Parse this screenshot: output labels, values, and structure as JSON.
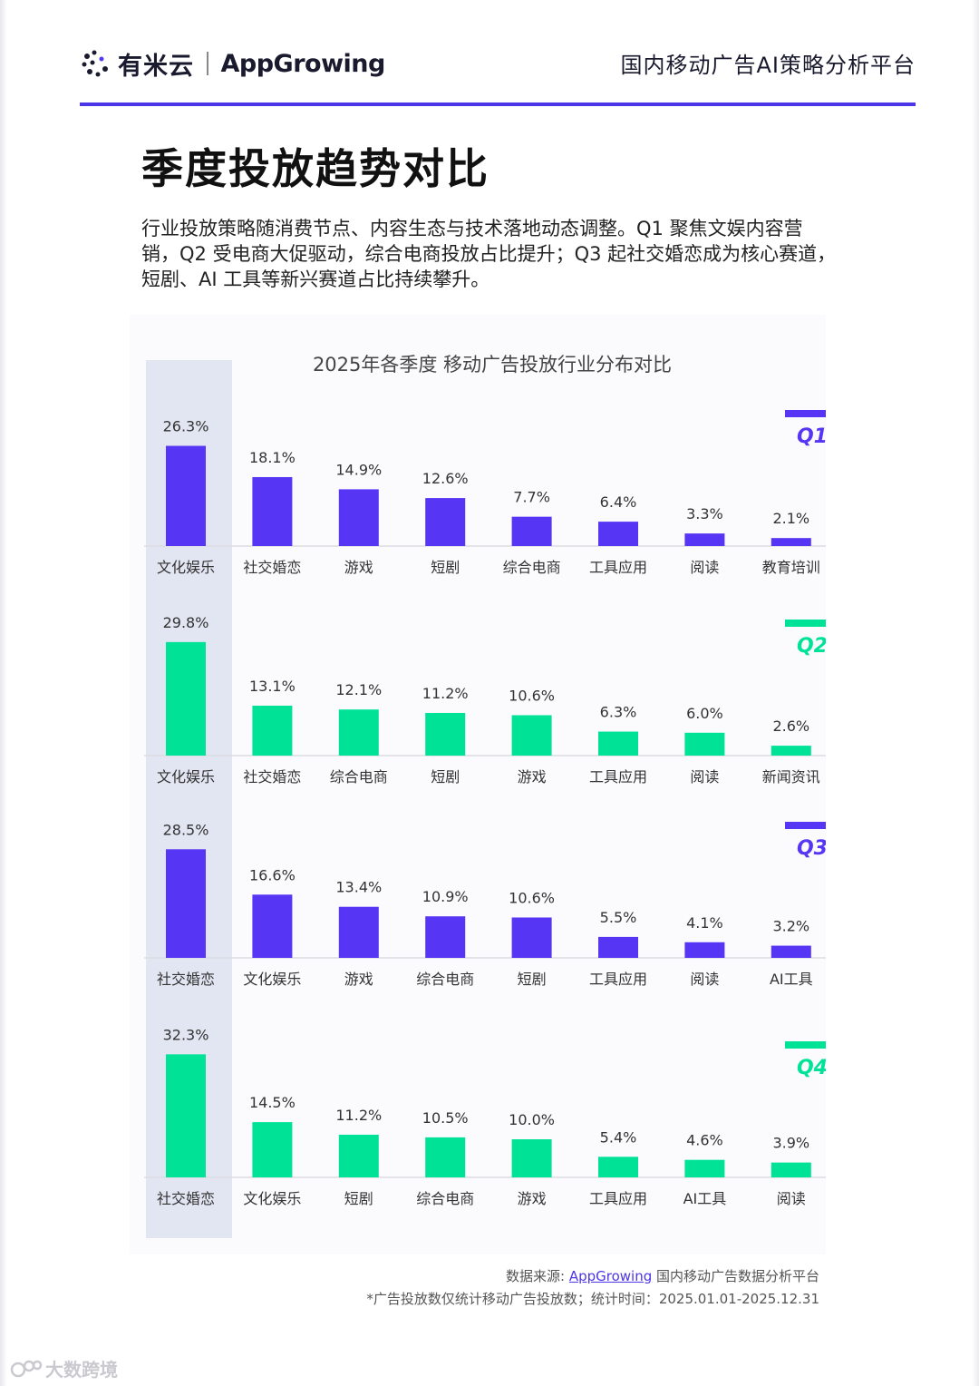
{
  "header": {
    "brand_cn": "有米云",
    "brand_en": "AppGrowing",
    "platform_title": "国内移动广告AI策略分析平台"
  },
  "page": {
    "title": "季度投放趋势对比",
    "intro": "行业投放策略随消费节点、内容生态与技术落地动态调整。Q1 聚焦文娱内容营销，Q2 受电商大促驱动，综合电商投放占比提升；Q3 起社交婚恋成为核心赛道，短剧、AI 工具等新兴赛道占比持续攀升。"
  },
  "colors": {
    "accent_purple": "#5735F5",
    "accent_green": "#00E396",
    "header_line": "#4B35E8",
    "highlight_column": "#E2E5F2"
  },
  "chart_data": {
    "type": "bar",
    "title": "2025年各季度 移动广告投放行业分布对比",
    "unit": "%",
    "panels": [
      {
        "name": "Q1",
        "color": "#5735F5",
        "categories": [
          "文化娱乐",
          "社交婚恋",
          "游戏",
          "短剧",
          "综合电商",
          "工具应用",
          "阅读",
          "教育培训"
        ],
        "values": [
          26.3,
          18.1,
          14.9,
          12.6,
          7.7,
          6.4,
          3.3,
          2.1
        ],
        "labels": [
          "26.3%",
          "18.1%",
          "14.9%",
          "12.6%",
          "7.7%",
          "6.4%",
          "3.3%",
          "2.1%"
        ]
      },
      {
        "name": "Q2",
        "color": "#00E396",
        "categories": [
          "文化娱乐",
          "社交婚恋",
          "综合电商",
          "短剧",
          "游戏",
          "工具应用",
          "阅读",
          "新闻资讯"
        ],
        "values": [
          29.8,
          13.1,
          12.1,
          11.2,
          10.6,
          6.3,
          6.0,
          2.6
        ],
        "labels": [
          "29.8%",
          "13.1%",
          "12.1%",
          "11.2%",
          "10.6%",
          "6.3%",
          "6.0%",
          "2.6%"
        ]
      },
      {
        "name": "Q3",
        "color": "#5735F5",
        "categories": [
          "社交婚恋",
          "文化娱乐",
          "游戏",
          "综合电商",
          "短剧",
          "工具应用",
          "阅读",
          "AI工具"
        ],
        "values": [
          28.5,
          16.6,
          13.4,
          10.9,
          10.6,
          5.5,
          4.1,
          3.2
        ],
        "labels": [
          "28.5%",
          "16.6%",
          "13.4%",
          "10.9%",
          "10.6%",
          "5.5%",
          "4.1%",
          "3.2%"
        ]
      },
      {
        "name": "Q4",
        "color": "#00E396",
        "categories": [
          "社交婚恋",
          "文化娱乐",
          "短剧",
          "综合电商",
          "游戏",
          "工具应用",
          "AI工具",
          "阅读"
        ],
        "values": [
          32.3,
          14.5,
          11.2,
          10.5,
          10.0,
          5.4,
          4.6,
          3.9
        ],
        "labels": [
          "32.3%",
          "14.5%",
          "11.2%",
          "10.5%",
          "10.0%",
          "5.4%",
          "4.6%",
          "3.9%"
        ]
      }
    ]
  },
  "footer": {
    "source_prefix": "数据来源: ",
    "source_link": "AppGrowing",
    "source_suffix": " 国内移动广告数据分析平台",
    "note": "*广告投放数仅统计移动广告投放数；统计时间：2025.01.01-2025.12.31",
    "watermark": "大数跨境"
  }
}
